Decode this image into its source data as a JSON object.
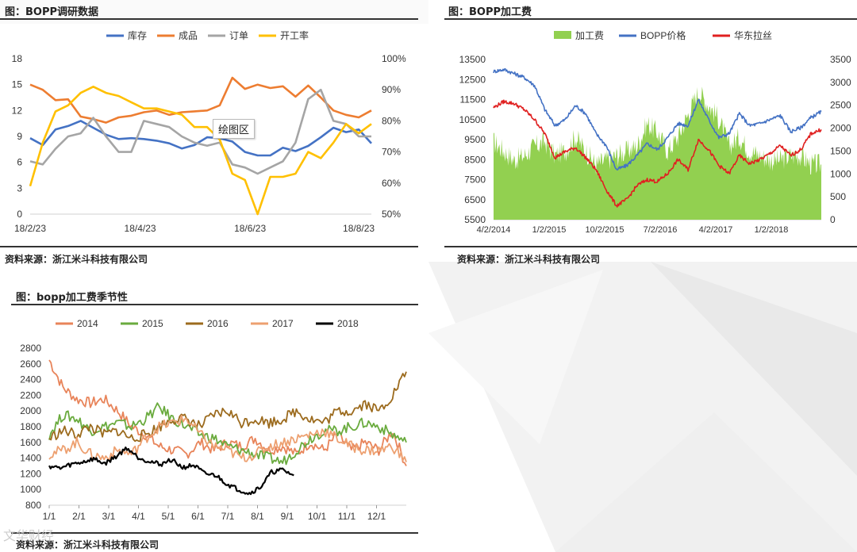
{
  "panels": {
    "p1": {
      "title": "图：BOPP调研数据",
      "source": "资料来源：浙江米斗科技有限公司",
      "tooltip": "绘图区"
    },
    "p2": {
      "title": "图：BOPP加工费",
      "source": "资料来源：浙江米斗科技有限公司"
    },
    "p3": {
      "title": "图：bopp加工费季节性",
      "source": "资料来源：浙江米斗科技有限公司"
    }
  },
  "watermark": "文华财经",
  "chart_data": [
    {
      "id": "bopp-survey",
      "type": "line",
      "x": [
        "18/2/23",
        "18/3/2",
        "18/3/9",
        "18/3/16",
        "18/3/23",
        "18/3/30",
        "18/4/6",
        "18/4/13",
        "18/4/20",
        "18/4/27",
        "18/5/4",
        "18/5/11",
        "18/5/18",
        "18/5/25",
        "18/6/1",
        "18/6/8",
        "18/6/15",
        "18/6/22",
        "18/6/29",
        "18/7/6",
        "18/7/13",
        "18/7/20",
        "18/7/27",
        "18/8/3",
        "18/8/10",
        "18/8/17",
        "18/8/24",
        "18/8/31"
      ],
      "xticks": [
        "18/2/23",
        "18/4/23",
        "18/6/23",
        "18/8/23"
      ],
      "xtick_index": [
        0,
        8.7,
        17.4,
        26
      ],
      "yticks_left": [
        "0",
        "3",
        "6",
        "9",
        "12",
        "15",
        "18"
      ],
      "yticks_right": [
        "50%",
        "60%",
        "70%",
        "80%",
        "90%",
        "100%"
      ],
      "ylim_left": [
        0,
        18
      ],
      "ylim_right": [
        50,
        100
      ],
      "legend_position": "top",
      "series": [
        {
          "name": "库存",
          "axis": "left",
          "color": "#4472C4",
          "values": [
            8.8,
            8.0,
            9.8,
            10.2,
            10.8,
            10.0,
            9.2,
            8.7,
            8.8,
            8.7,
            8.5,
            8.2,
            7.6,
            8.0,
            8.9,
            8.8,
            8.4,
            7.2,
            6.8,
            6.8,
            7.7,
            7.3,
            7.9,
            8.9,
            10.0,
            9.5,
            9.8,
            8.2
          ]
        },
        {
          "name": "成品",
          "axis": "left",
          "color": "#ED7D31",
          "values": [
            15.0,
            14.4,
            13.2,
            13.3,
            11.3,
            11.0,
            10.6,
            11.2,
            11.4,
            11.8,
            12.0,
            11.5,
            11.8,
            11.9,
            12.0,
            12.6,
            15.8,
            14.5,
            15.0,
            14.6,
            14.8,
            13.6,
            14.9,
            13.5,
            12.0,
            11.5,
            11.2,
            12.0
          ]
        },
        {
          "name": "订单",
          "axis": "right",
          "color": "#A5A5A5",
          "values": [
            67,
            66,
            71,
            75,
            76,
            81,
            75,
            70,
            70,
            80,
            79,
            78,
            75,
            73,
            72,
            73,
            66,
            65,
            63,
            65,
            67,
            73,
            87,
            90,
            80,
            79,
            75,
            75
          ]
        },
        {
          "name": "开工率",
          "axis": "right",
          "color": "#FFC000",
          "values": [
            59,
            73,
            83,
            85,
            89,
            91,
            89,
            88,
            86,
            84,
            84,
            83,
            82,
            78,
            78,
            74,
            63,
            61,
            50,
            62,
            62,
            63,
            70,
            68,
            73,
            79,
            76,
            79
          ]
        }
      ]
    },
    {
      "id": "bopp-processing-fee",
      "type": "area",
      "xticks": [
        "4/2/2014",
        "1/2/2015",
        "10/2/2015",
        "7/2/2016",
        "4/2/2017",
        "1/2/2018"
      ],
      "yticks_left": [
        "5500",
        "6500",
        "7500",
        "8500",
        "9500",
        "10500",
        "11500",
        "12500",
        "13500"
      ],
      "yticks_right": [
        "0",
        "500",
        "1000",
        "1500",
        "2000",
        "2500",
        "3000",
        "3500"
      ],
      "ylim_left": [
        5500,
        13500
      ],
      "ylim_right": [
        0,
        3500
      ],
      "legend_position": "top",
      "series": [
        {
          "name": "加工费",
          "axis": "right",
          "color": "#92D050",
          "kind": "area",
          "values": [
            1700,
            1500,
            1300,
            1400,
            1600,
            1700,
            1400,
            1500,
            1800,
            1500,
            1200,
            1300,
            1400,
            1500,
            1600,
            2100,
            1900,
            1500,
            1800,
            2300,
            2800,
            2500,
            2200,
            1600,
            1800,
            1500,
            1400,
            1300,
            1300,
            1400,
            1400,
            1200,
            1200
          ]
        },
        {
          "name": "BOPP价格",
          "axis": "left",
          "color": "#4472C4",
          "kind": "line",
          "values": [
            12900,
            13000,
            12800,
            12600,
            12200,
            11000,
            10200,
            10500,
            11200,
            10800,
            9800,
            9200,
            8000,
            8200,
            8700,
            9300,
            9000,
            9600,
            10300,
            10200,
            11500,
            10500,
            9600,
            9800,
            10800,
            10200,
            10300,
            10500,
            10700,
            9900,
            10100,
            10600,
            10900
          ]
        },
        {
          "name": "华东拉丝",
          "axis": "left",
          "color": "#E02020",
          "kind": "line",
          "values": [
            11100,
            11400,
            11300,
            11000,
            10500,
            9800,
            8600,
            8900,
            9100,
            8600,
            8000,
            7000,
            6200,
            6500,
            7200,
            7500,
            7400,
            7800,
            8500,
            8000,
            9500,
            9000,
            8200,
            7800,
            8700,
            8300,
            8500,
            8800,
            9200,
            8700,
            9000,
            9800,
            10000
          ]
        }
      ]
    },
    {
      "id": "bopp-seasonality",
      "type": "line",
      "xticks": [
        "1/1",
        "2/1",
        "3/1",
        "4/1",
        "5/1",
        "6/1",
        "7/1",
        "8/1",
        "9/1",
        "10/1",
        "11/1",
        "12/1"
      ],
      "yticks": [
        "800",
        "1000",
        "1200",
        "1400",
        "1600",
        "1800",
        "2000",
        "2200",
        "2400",
        "2600",
        "2800"
      ],
      "ylim": [
        800,
        2800
      ],
      "legend_position": "top",
      "series": [
        {
          "name": "2014",
          "color": "#E8845A",
          "values": [
            2650,
            2300,
            2150,
            2100,
            2150,
            2000,
            1800,
            1700,
            1550,
            1500,
            1450,
            1600,
            1500,
            1600,
            1550,
            1650,
            1500,
            1550,
            1450,
            1600,
            1500,
            1700,
            1500,
            1600,
            1500,
            1750,
            1300
          ]
        },
        {
          "name": "2015",
          "color": "#6AAB3E",
          "values": [
            1700,
            1950,
            1900,
            1750,
            1800,
            1850,
            1800,
            1900,
            2050,
            1900,
            1800,
            1700,
            1650,
            1550,
            1500,
            1450,
            1400,
            1350,
            1500,
            1650,
            1750,
            1750,
            1800,
            1850,
            1800,
            1700,
            1600
          ]
        },
        {
          "name": "2016",
          "color": "#9C6B1E",
          "values": [
            1650,
            1750,
            1700,
            1800,
            1700,
            1750,
            1650,
            1700,
            1800,
            1900,
            1900,
            1800,
            1950,
            2000,
            1850,
            1900,
            1850,
            1900,
            2000,
            1900,
            1850,
            2000,
            2000,
            2100,
            2000,
            2200,
            2500
          ]
        },
        {
          "name": "2017",
          "color": "#EDA070",
          "values": [
            1450,
            1500,
            1600,
            1450,
            1400,
            1500,
            1450,
            1650,
            1800,
            1850,
            1900,
            1700,
            1550,
            1500,
            1400,
            1450,
            1550,
            1600,
            1650,
            1700,
            1750,
            1650,
            1550,
            1500,
            1500,
            1550,
            1350
          ]
        },
        {
          "name": "2018",
          "color": "#000000",
          "values": [
            1300,
            1270,
            1320,
            1350,
            1390,
            1330,
            1420,
            1530,
            1410,
            1360,
            1320,
            1380,
            1280,
            1310,
            1200,
            1180,
            1070,
            1000,
            950,
            1030,
            1220,
            1250,
            1180
          ]
        }
      ]
    }
  ]
}
